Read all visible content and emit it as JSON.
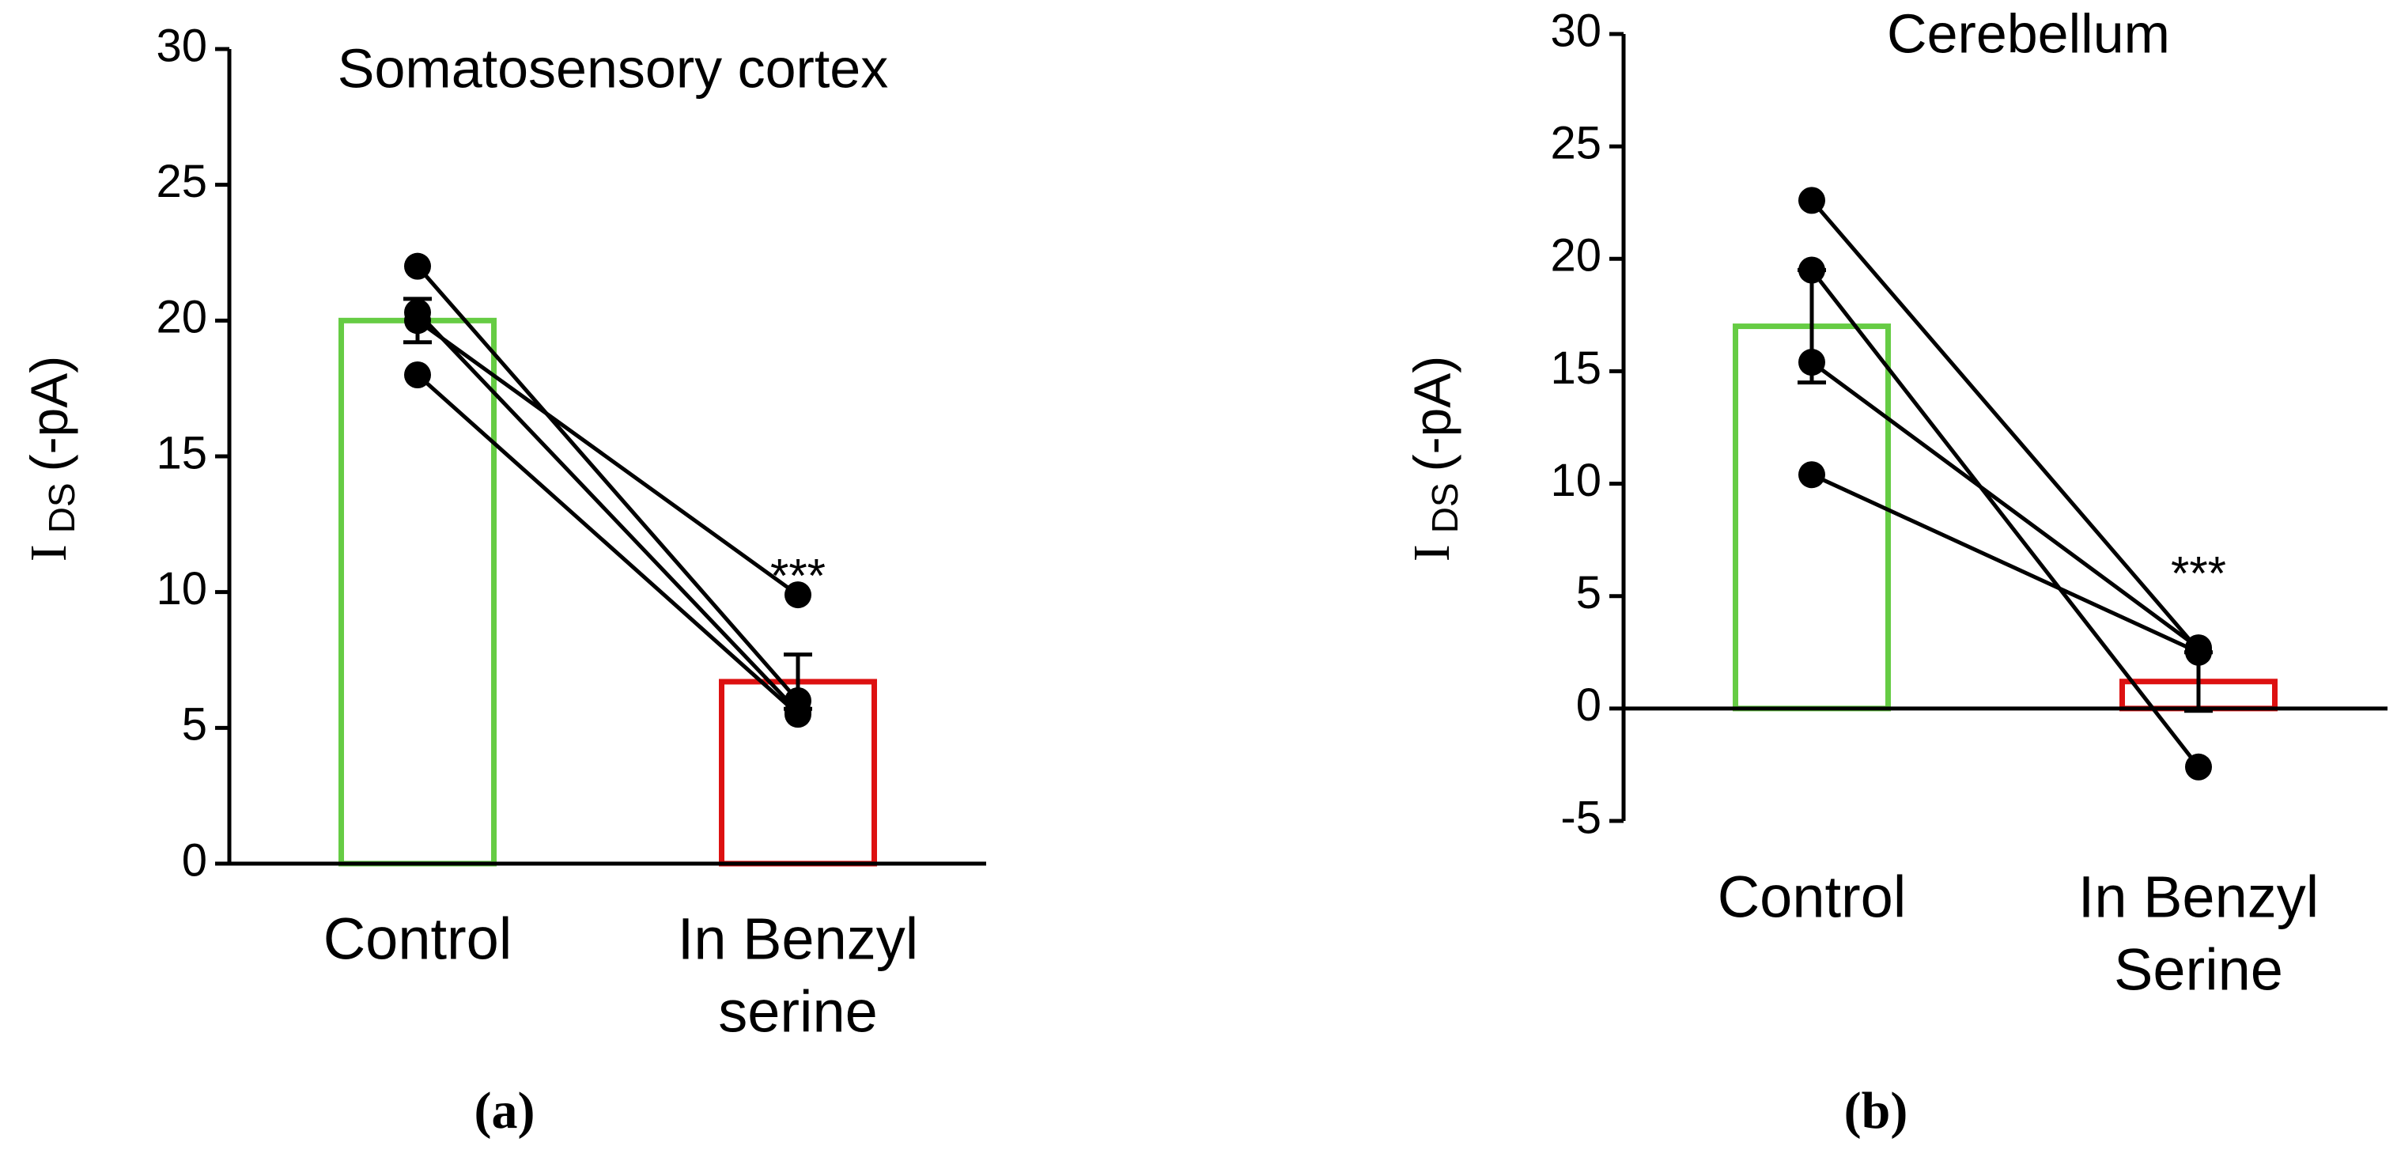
{
  "chart_data": [
    {
      "type": "bar",
      "title": "Somatosensory cortex",
      "panel": "(a)",
      "y_label": [
        "I",
        "DS",
        "(-pA)"
      ],
      "categories": [
        "Control",
        [
          "In Benzyl",
          "serine"
        ]
      ],
      "values": [
        20,
        6.7
      ],
      "errors": [
        0.8,
        1.0
      ],
      "colors": [
        "#66cc44",
        "#dd1111"
      ],
      "pairs": [
        [
          22,
          6
        ],
        [
          20.3,
          5.6
        ],
        [
          20,
          9.9
        ],
        [
          18,
          5.5
        ]
      ],
      "annotation": "***",
      "ylim": [
        0,
        30
      ],
      "yticks": [
        0,
        5,
        10,
        15,
        20,
        25,
        30
      ]
    },
    {
      "type": "bar",
      "title": "Cerebellum",
      "panel": "(b)",
      "y_label": [
        "I",
        "DS",
        "(-pA)"
      ],
      "categories": [
        "Control",
        [
          "In Benzyl",
          "Serine"
        ]
      ],
      "values": [
        17,
        1.2
      ],
      "errors": [
        2.5,
        1.3
      ],
      "colors": [
        "#66cc44",
        "#dd1111"
      ],
      "pairs": [
        [
          22.6,
          2.6
        ],
        [
          19.5,
          -2.6
        ],
        [
          15.4,
          2.7
        ],
        [
          10.4,
          2.5
        ]
      ],
      "annotation": "***",
      "ylim": [
        -5,
        30
      ],
      "yticks": [
        -5,
        0,
        5,
        10,
        15,
        20,
        25,
        30
      ]
    }
  ]
}
